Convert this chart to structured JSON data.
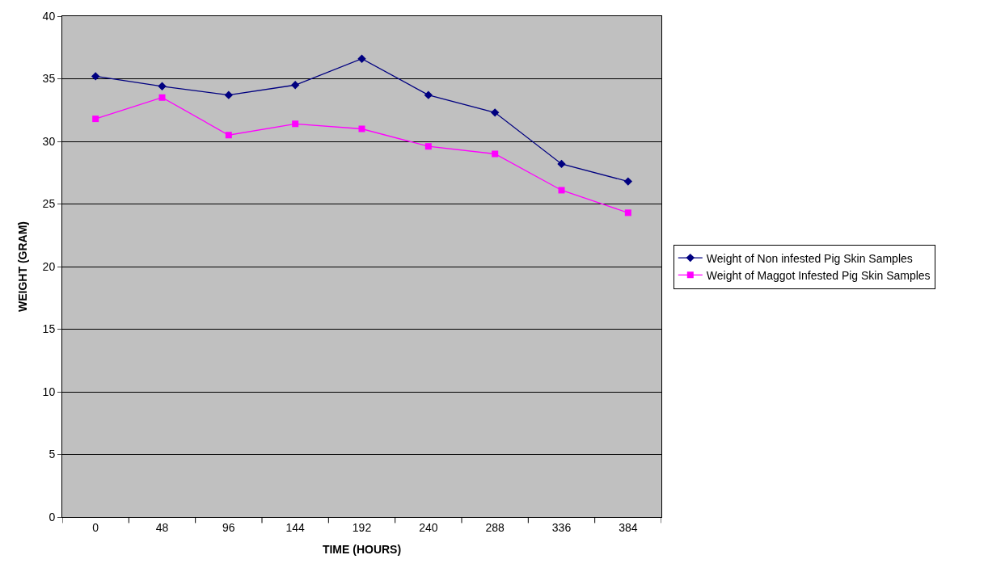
{
  "chart_data": {
    "type": "line",
    "xlabel": "TIME (HOURS)",
    "ylabel": "WEIGHT (GRAM)",
    "categories": [
      "0",
      "48",
      "96",
      "144",
      "192",
      "240",
      "288",
      "336",
      "384"
    ],
    "series": [
      {
        "name": "Weight of Non infested Pig Skin Samples",
        "color": "#000080",
        "marker": "diamond",
        "values": [
          35.2,
          34.4,
          33.7,
          34.5,
          36.6,
          33.7,
          32.3,
          28.2,
          26.8
        ]
      },
      {
        "name": "Weight of Maggot Infested Pig Skin Samples",
        "color": "#ff00ff",
        "marker": "square",
        "values": [
          31.8,
          33.5,
          30.5,
          31.4,
          31.0,
          29.6,
          29.0,
          26.1,
          24.3
        ]
      }
    ],
    "ylim": [
      0,
      40
    ],
    "yticks": [
      0,
      5,
      10,
      15,
      20,
      25,
      30,
      35,
      40
    ],
    "grid": "y",
    "legend": "right",
    "line_style": "solid"
  }
}
